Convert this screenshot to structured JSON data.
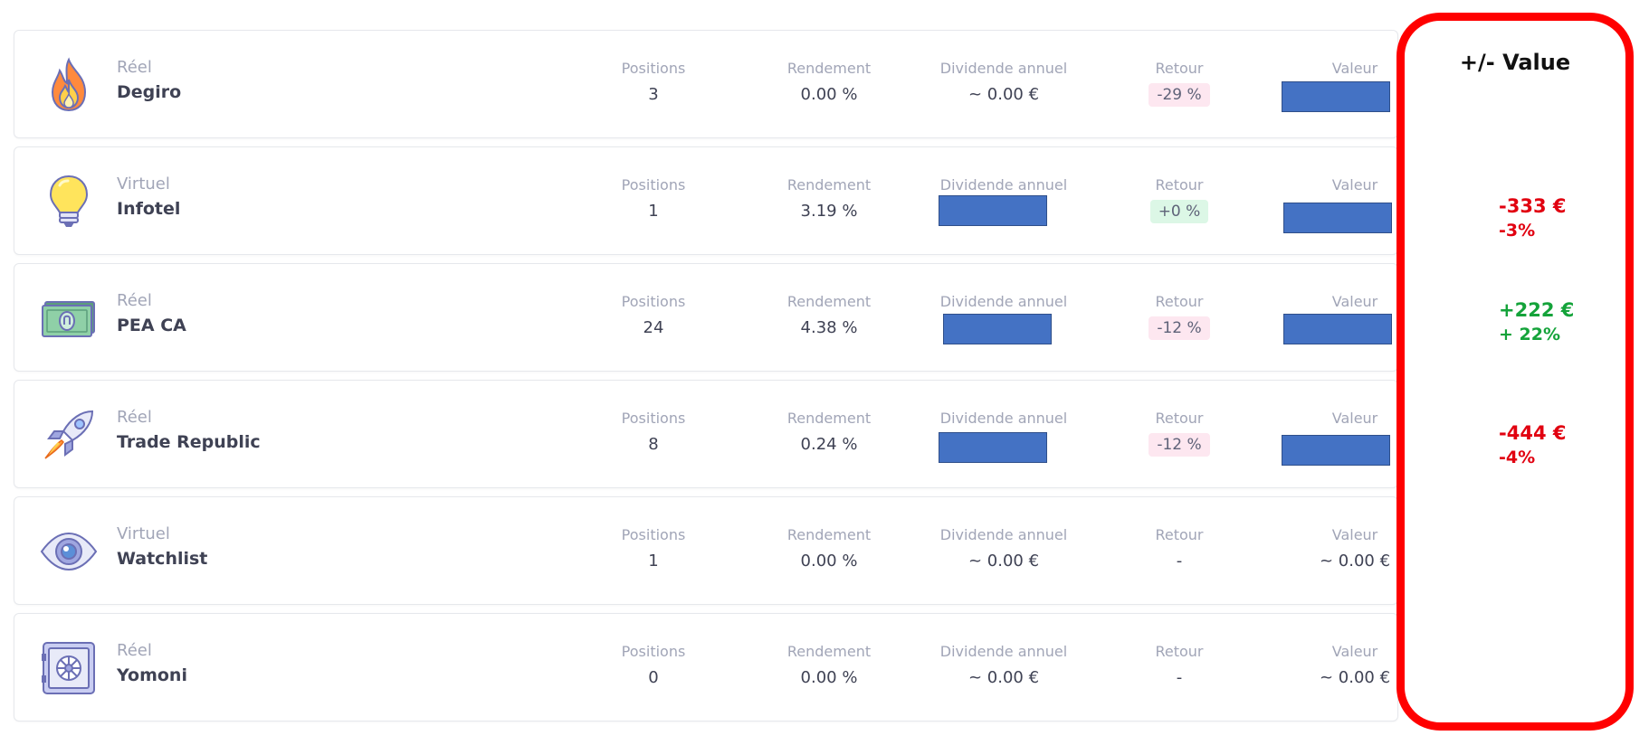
{
  "labels": {
    "positions": "Positions",
    "rendement": "Rendement",
    "dividende": "Dividende annuel",
    "retour": "Retour",
    "valeur": "Valeur"
  },
  "accounts": [
    {
      "type": "Réel",
      "name": "Degiro",
      "icon": "fire-icon",
      "positions": "3",
      "rendement": "0.00 %",
      "dividende": "~ 0.00 €",
      "retour": "-29 %",
      "valeur": ""
    },
    {
      "type": "Virtuel",
      "name": "Infotel",
      "icon": "lightbulb-icon",
      "positions": "1",
      "rendement": "3.19 %",
      "dividende": "",
      "retour": "+0 %",
      "valeur": ""
    },
    {
      "type": "Réel",
      "name": "PEA CA",
      "icon": "banknote-icon",
      "positions": "24",
      "rendement": "4.38 %",
      "dividende": "",
      "retour": "-12 %",
      "valeur": ""
    },
    {
      "type": "Réel",
      "name": "Trade Republic",
      "icon": "rocket-icon",
      "positions": "8",
      "rendement": "0.24 %",
      "dividende": "",
      "retour": "-12 %",
      "valeur": ""
    },
    {
      "type": "Virtuel",
      "name": "Watchlist",
      "icon": "eye-icon",
      "positions": "1",
      "rendement": "0.00 %",
      "dividende": "~ 0.00 €",
      "retour": "-",
      "valeur": "~ 0.00 €"
    },
    {
      "type": "Réel",
      "name": "Yomoni",
      "icon": "safe-icon",
      "positions": "0",
      "rendement": "0.00 %",
      "dividende": "~ 0.00 €",
      "retour": "-",
      "valeur": "~ 0.00 €"
    }
  ],
  "highlight": {
    "title": "+/- Value",
    "values": [
      {
        "amount": "-333 €",
        "percent": "-3%",
        "color": "#e10010"
      },
      {
        "amount": "+222 €",
        "percent": "+ 22%",
        "color": "#14a33a"
      },
      {
        "amount": "-444 €",
        "percent": "-4%",
        "color": "#e10010"
      }
    ]
  },
  "colors": {
    "redaction": "#4472c4",
    "highlight_border": "#ff0000"
  }
}
